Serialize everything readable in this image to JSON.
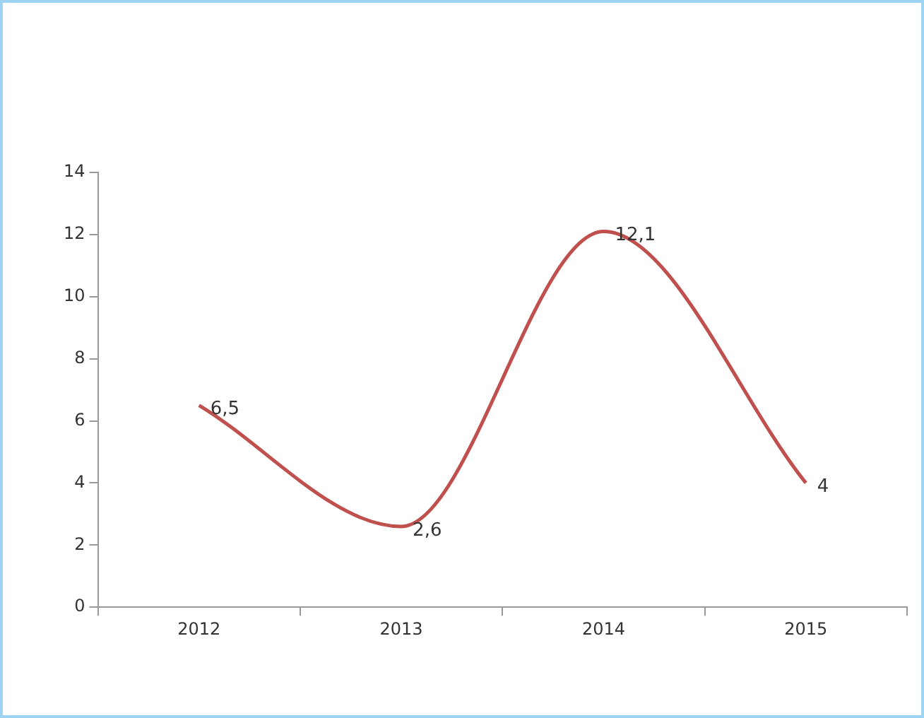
{
  "chart_data": {
    "type": "line",
    "categories": [
      "2012",
      "2013",
      "2014",
      "2015"
    ],
    "series": [
      {
        "color": "#c0504d",
        "values": [
          6.5,
          2.6,
          12.1,
          4
        ],
        "value_labels": [
          "6,5",
          "2,6",
          "12,1",
          "4"
        ]
      }
    ],
    "ylim": [
      0,
      14
    ],
    "yticks": [
      0,
      2,
      4,
      6,
      8,
      10,
      12,
      14
    ],
    "grid": false,
    "legend": false,
    "marker": "none",
    "line_style": "solid"
  }
}
